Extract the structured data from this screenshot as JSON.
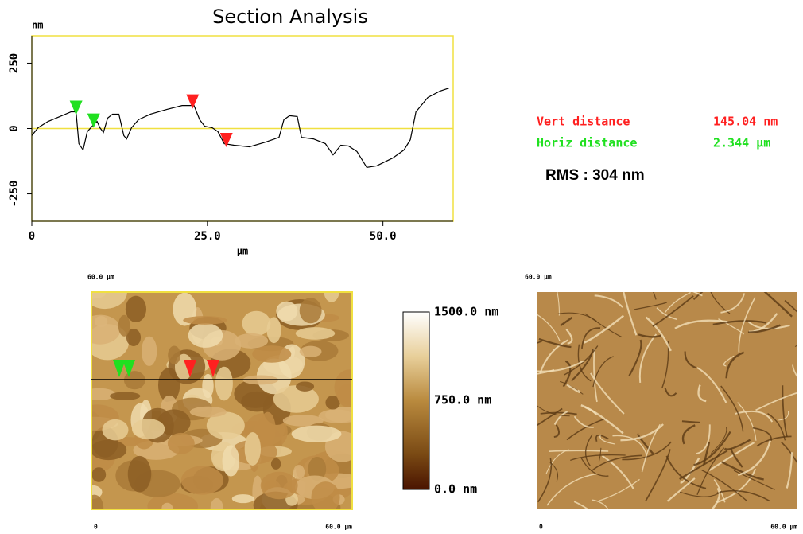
{
  "chart_data": {
    "type": "line",
    "title": "Section Analysis",
    "y_label": "nm",
    "x_label": "µm",
    "xlim": [
      0,
      60
    ],
    "ylim": [
      -355,
      355
    ],
    "xticks": [
      0,
      {
        "value": 25,
        "label": "25.0"
      },
      {
        "value": 50,
        "label": "50.0"
      }
    ],
    "yticks": [
      -250,
      0,
      250
    ],
    "x": [
      0,
      0.9,
      2.3,
      4.0,
      5.6,
      6.3,
      6.7,
      7.3,
      7.9,
      8.8,
      9.3,
      9.7,
      10.2,
      10.8,
      11.5,
      12.4,
      13.1,
      13.5,
      14.2,
      15.2,
      16.9,
      19.2,
      21.4,
      23.1,
      23.9,
      24.6,
      25.7,
      26.5,
      27.4,
      28.8,
      31.0,
      33.3,
      35.2,
      35.9,
      36.7,
      37.8,
      38.4,
      40.1,
      41.8,
      42.9,
      44.0,
      45.1,
      46.3,
      47.7,
      49.1,
      51.4,
      53.0,
      53.9,
      54.7,
      56.4,
      58.1,
      59.4
    ],
    "series": [
      {
        "color": "#000000",
        "values": [
          -27,
          3,
          27,
          46,
          64,
          64,
          -58,
          -82,
          -12,
          15,
          27,
          3,
          -15,
          40,
          55,
          55,
          -27,
          -40,
          3,
          34,
          55,
          73,
          88,
          88,
          34,
          9,
          3,
          -12,
          -58,
          -64,
          -70,
          -52,
          -34,
          34,
          49,
          46,
          -34,
          -40,
          -58,
          -101,
          -64,
          -67,
          -88,
          -149,
          -143,
          -113,
          -82,
          -43,
          64,
          119,
          143,
          155
        ]
      }
    ],
    "zero_line_color": "#f0e040",
    "frame_color": "#f0e040",
    "markers": [
      {
        "x": 6.3,
        "color": "#20e020"
      },
      {
        "x": 8.8,
        "color": "#20e020"
      },
      {
        "x": 22.9,
        "color": "#ff2020"
      },
      {
        "x": 27.7,
        "color": "#ff2020"
      }
    ]
  },
  "readout": {
    "vert_label": "Vert distance",
    "vert_value": "145.04 nm",
    "horiz_label": "Horiz distance",
    "horiz_value": "2.344 µm",
    "rms": "RMS : 304 nm"
  },
  "height_image": {
    "top_label": "60.0 µm",
    "x_start": "0",
    "x_end": "60.0 µm"
  },
  "color_bar": {
    "top": "1500.0 nm",
    "middle": "750.0 nm",
    "bottom": "0.0 nm"
  },
  "deflection_image": {
    "top_label": "60.0 µm",
    "x_start": "0",
    "x_end": "60.0 µm"
  }
}
